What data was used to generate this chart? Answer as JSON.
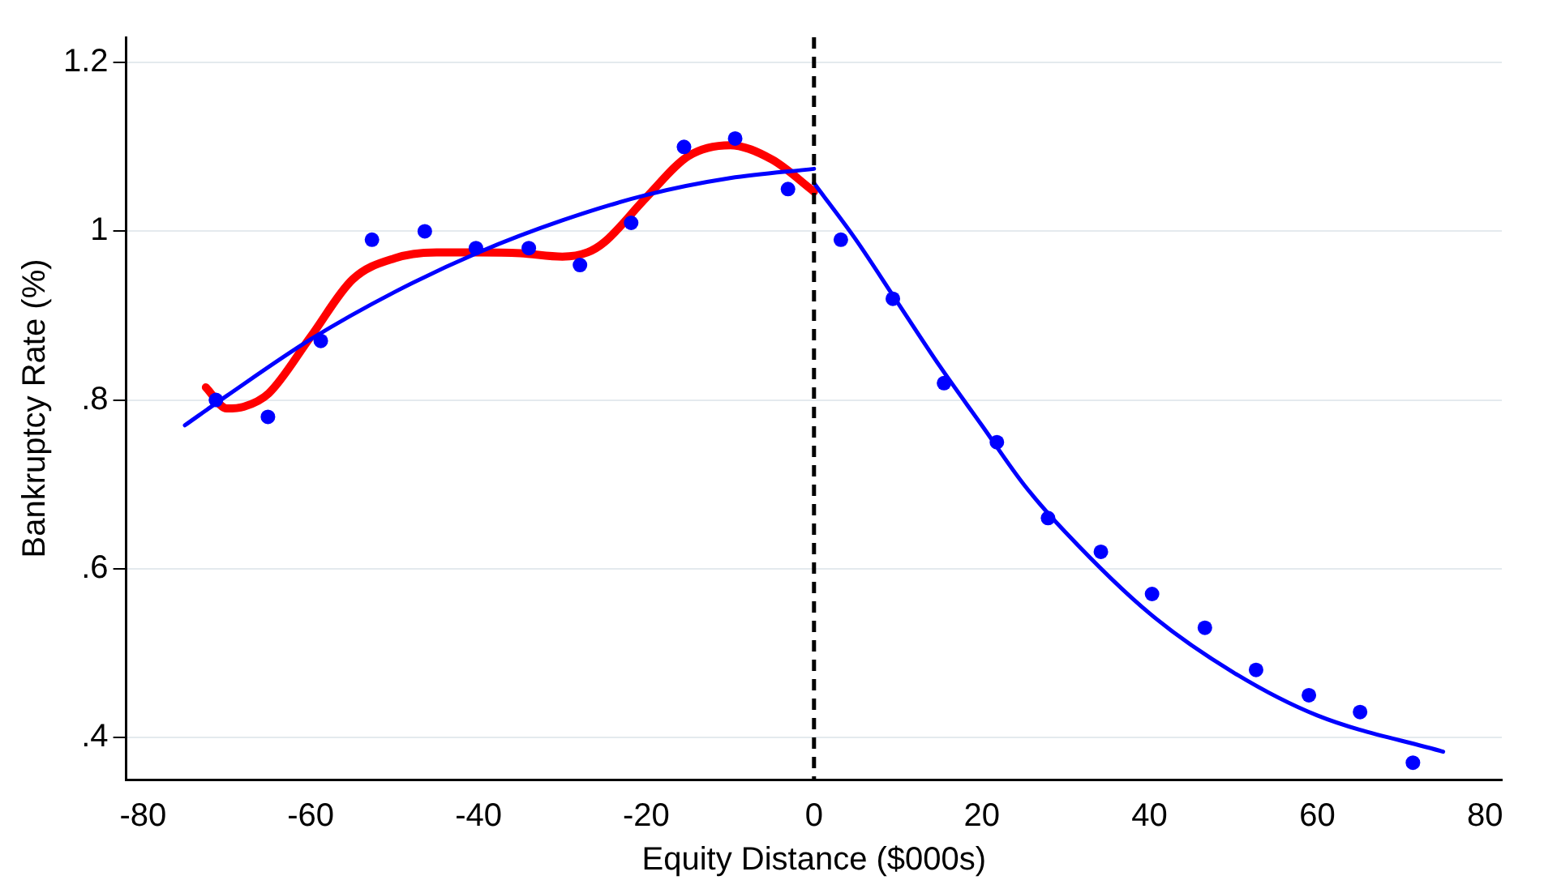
{
  "chart_data": {
    "type": "scatter",
    "xlabel": "Equity Distance ($000s)",
    "ylabel": "Bankruptcy Rate (%)",
    "xlim": [
      -82,
      82
    ],
    "ylim": [
      0.35,
      1.23
    ],
    "xticks": [
      -80,
      -60,
      -40,
      -20,
      0,
      20,
      40,
      60,
      80
    ],
    "yticks": [
      {
        "value": 0.4,
        "label": ".4"
      },
      {
        "value": 0.6,
        "label": ".6"
      },
      {
        "value": 0.8,
        "label": ".8"
      },
      {
        "value": 1,
        "label": "1"
      },
      {
        "value": 1.2,
        "label": "1.2"
      }
    ],
    "grid": "y",
    "legend": false,
    "ref_lines": [
      {
        "axis": "x",
        "value": 0,
        "color": "#000000",
        "line_style": "dashed"
      }
    ],
    "series": [
      {
        "type": "scatter",
        "color": "#0000ff",
        "marker": "circle",
        "x": [
          -71.3,
          -65.1,
          -58.8,
          -52.7,
          -46.4,
          -40.3,
          -34.0,
          -27.9,
          -21.8,
          -15.5,
          -9.4,
          -3.1,
          3.2,
          9.4,
          15.5,
          21.8,
          27.9,
          34.2,
          40.3,
          46.6,
          52.7,
          59.0,
          65.1,
          71.4
        ],
        "values": [
          0.8,
          0.78,
          0.87,
          0.99,
          1.0,
          0.98,
          0.98,
          0.96,
          1.01,
          1.1,
          1.11,
          1.05,
          0.99,
          0.92,
          0.82,
          0.75,
          0.66,
          0.62,
          0.57,
          0.53,
          0.48,
          0.45,
          0.43,
          0.37
        ]
      },
      {
        "type": "line",
        "color": "#0000ff",
        "marker": "none",
        "x": [
          -75,
          -70,
          -60,
          -50,
          -40,
          -30,
          -20,
          -10,
          0
        ],
        "values": [
          0.77,
          0.805,
          0.872,
          0.928,
          0.975,
          1.013,
          1.043,
          1.063,
          1.074
        ]
      },
      {
        "type": "line",
        "color": "#0000ff",
        "marker": "none",
        "x": [
          0,
          5,
          10,
          15,
          20,
          25,
          30,
          40,
          50,
          60,
          75
        ],
        "values": [
          1.057,
          0.99,
          0.915,
          0.84,
          0.77,
          0.7,
          0.643,
          0.547,
          0.477,
          0.426,
          0.383
        ]
      },
      {
        "type": "line",
        "color": "#ff0000",
        "marker": "none",
        "x": [
          -72.5,
          -70,
          -68,
          -65,
          -60,
          -55,
          -50,
          -45,
          -40,
          -35,
          -30,
          -27,
          -25,
          -20,
          -15,
          -10,
          -5,
          0
        ],
        "values": [
          0.815,
          0.79,
          0.792,
          0.808,
          0.875,
          0.943,
          0.968,
          0.975,
          0.975,
          0.974,
          0.97,
          0.975,
          0.987,
          1.04,
          1.089,
          1.102,
          1.085,
          1.047
        ]
      }
    ]
  }
}
